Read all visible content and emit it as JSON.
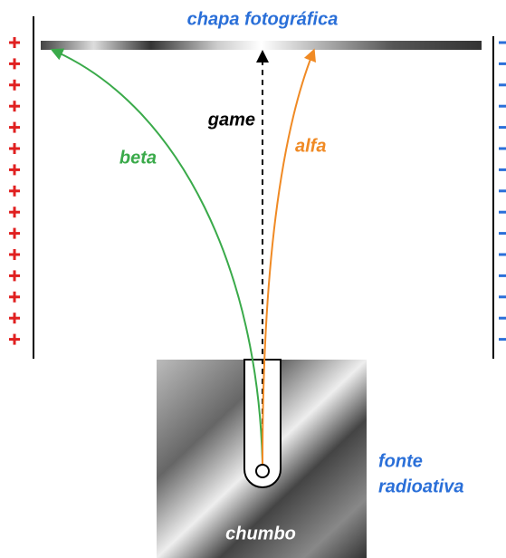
{
  "plate": {
    "label": "chapa fotográfica"
  },
  "rays": {
    "gamma": "game",
    "beta": "beta",
    "alpha": "alfa"
  },
  "source": {
    "label": [
      "fonte",
      "radioativa"
    ]
  },
  "lead": {
    "label": "chumbo"
  }
}
